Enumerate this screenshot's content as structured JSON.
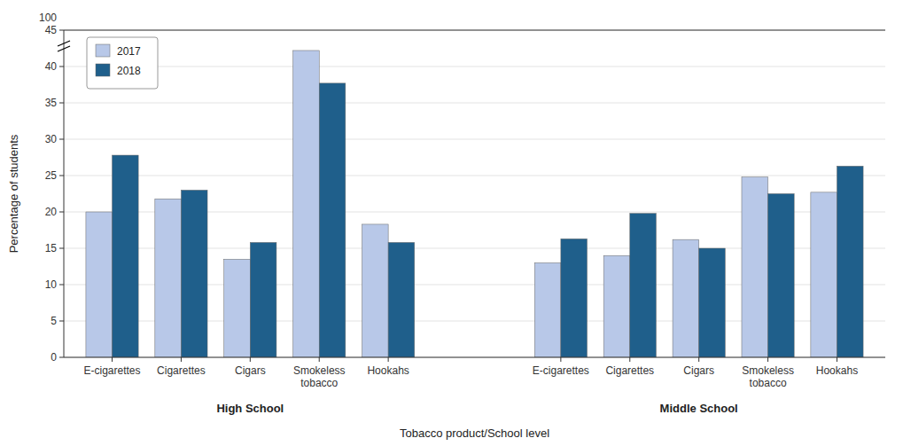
{
  "chart_data": {
    "type": "bar",
    "xlabel": "Tobacco product/School level",
    "ylabel": "Percentage of students",
    "groups": [
      {
        "name": "High School",
        "categories": [
          "E-cigarettes",
          "Cigarettes",
          "Cigars",
          "Smokeless\ntobacco",
          "Hookahs"
        ]
      },
      {
        "name": "Middle School",
        "categories": [
          "E-cigarettes",
          "Cigarettes",
          "Cigars",
          "Smokeless\ntobacco",
          "Hookahs"
        ]
      }
    ],
    "series": [
      {
        "name": "2017",
        "color": "#b8c8e8",
        "values": [
          20.0,
          21.8,
          13.5,
          42.2,
          18.3,
          13.0,
          14.0,
          16.2,
          24.8,
          22.7
        ]
      },
      {
        "name": "2018",
        "color": "#1f5f8b",
        "values": [
          27.8,
          23.0,
          15.8,
          37.7,
          15.8,
          16.3,
          19.8,
          15.0,
          22.5,
          26.3
        ]
      }
    ],
    "ylim": [
      0,
      45
    ],
    "yticks": [
      0,
      5,
      10,
      15,
      20,
      25,
      30,
      35,
      40,
      45
    ],
    "annotations": [
      {
        "text": "100"
      }
    ],
    "grid": true,
    "legend": "upper left"
  }
}
